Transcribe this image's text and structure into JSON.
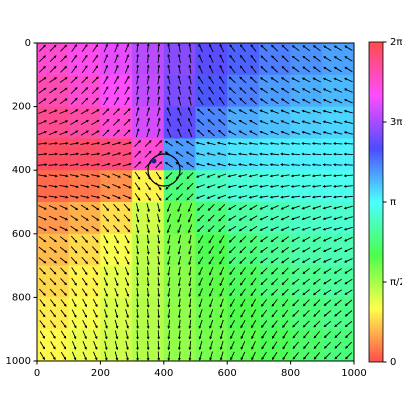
{
  "chart_data": {
    "type": "heatmap",
    "z": [
      [
        5.5,
        5.33,
        5.1,
        4.83,
        4.54,
        4.27,
        4.06,
        3.9,
        3.78,
        3.69
      ],
      [
        5.67,
        5.5,
        5.24,
        4.88,
        4.47,
        4.12,
        3.89,
        3.73,
        3.62,
        3.55
      ],
      [
        5.89,
        5.75,
        5.5,
        4.99,
        4.31,
        3.86,
        3.64,
        3.51,
        3.44,
        3.39
      ],
      [
        6.17,
        6.12,
        6.01,
        5.5,
        3.73,
        3.39,
        3.29,
        3.25,
        3.23,
        3.21
      ],
      [
        0.17,
        0.24,
        0.4,
        0.98,
        2.36,
        2.78,
        2.91,
        2.98,
        3.01,
        3.04
      ],
      [
        0.44,
        0.59,
        0.85,
        1.33,
        1.93,
        2.36,
        2.59,
        2.72,
        2.81,
        2.86
      ],
      [
        0.65,
        0.83,
        1.08,
        1.42,
        1.8,
        2.12,
        2.36,
        2.52,
        2.63,
        2.71
      ],
      [
        0.81,
        0.98,
        1.2,
        1.46,
        1.74,
        1.99,
        2.2,
        2.36,
        2.48,
        2.57
      ],
      [
        0.93,
        1.09,
        1.28,
        1.48,
        1.7,
        1.91,
        2.09,
        2.23,
        2.36,
        2.45
      ],
      [
        1.02,
        1.17,
        1.33,
        1.5,
        1.68,
        1.85,
        2.01,
        2.14,
        2.26,
        2.36
      ]
    ],
    "xlim": [
      0,
      1000
    ],
    "xticks": [
      0,
      200,
      400,
      600,
      800,
      1000
    ],
    "ylim": [
      1000,
      0
    ],
    "yticks": [
      0,
      200,
      400,
      600,
      800,
      1000
    ],
    "colorbar": {
      "lim": [
        0,
        6.2832
      ],
      "ticks": [
        {
          "value": 0,
          "label": "0"
        },
        {
          "value": 1.5708,
          "label": "π/2"
        },
        {
          "value": 3.1416,
          "label": "π"
        },
        {
          "value": 4.7124,
          "label": "3π/2"
        },
        {
          "value": 6.2832,
          "label": "2π"
        }
      ]
    }
  }
}
